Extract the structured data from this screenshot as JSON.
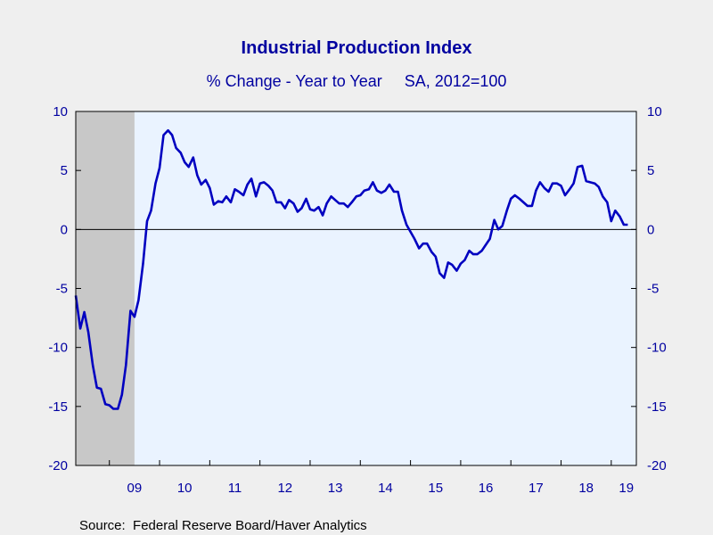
{
  "chart_data": {
    "type": "line",
    "title": "Industrial Production Index",
    "subtitle": "% Change - Year to Year     SA, 2012=100",
    "source": "Source:  Federal Reserve Board/Haver Analytics",
    "ylim": [
      -20,
      10
    ],
    "yticks": [
      10,
      5,
      0,
      -5,
      -10,
      -15,
      -20
    ],
    "xlim": [
      2008.33,
      2019.5
    ],
    "x_tick_labels": [
      "09",
      "10",
      "11",
      "12",
      "13",
      "14",
      "15",
      "16",
      "17",
      "18",
      "19"
    ],
    "zero_line": true,
    "recession_shading": {
      "start": 2008.33,
      "end": 2009.5
    },
    "colors": {
      "line": "#0000c0",
      "text": "#0000a0",
      "plot_background": "#eaf3ff",
      "recession": "#c8c8c8",
      "page_background": "#efefef"
    },
    "series": [
      {
        "color": "#0000c0",
        "points": [
          [
            2008.33,
            -5.6
          ],
          [
            2008.42,
            -8.4
          ],
          [
            2008.5,
            -7.0
          ],
          [
            2008.58,
            -8.7
          ],
          [
            2008.67,
            -11.5
          ],
          [
            2008.75,
            -13.4
          ],
          [
            2008.83,
            -13.5
          ],
          [
            2008.92,
            -14.8
          ],
          [
            2009.0,
            -14.9
          ],
          [
            2009.08,
            -15.2
          ],
          [
            2009.17,
            -15.2
          ],
          [
            2009.25,
            -14.0
          ],
          [
            2009.33,
            -11.5
          ],
          [
            2009.42,
            -6.9
          ],
          [
            2009.5,
            -7.4
          ],
          [
            2009.58,
            -6.0
          ],
          [
            2009.67,
            -2.9
          ],
          [
            2009.75,
            0.7
          ],
          [
            2009.83,
            1.6
          ],
          [
            2009.92,
            3.9
          ],
          [
            2010.0,
            5.2
          ],
          [
            2010.08,
            8.0
          ],
          [
            2010.17,
            8.4
          ],
          [
            2010.25,
            8.0
          ],
          [
            2010.33,
            6.9
          ],
          [
            2010.42,
            6.5
          ],
          [
            2010.5,
            5.7
          ],
          [
            2010.58,
            5.3
          ],
          [
            2010.67,
            6.1
          ],
          [
            2010.75,
            4.6
          ],
          [
            2010.83,
            3.8
          ],
          [
            2010.92,
            4.2
          ],
          [
            2011.0,
            3.5
          ],
          [
            2011.08,
            2.1
          ],
          [
            2011.17,
            2.4
          ],
          [
            2011.25,
            2.3
          ],
          [
            2011.33,
            2.8
          ],
          [
            2011.42,
            2.3
          ],
          [
            2011.5,
            3.4
          ],
          [
            2011.58,
            3.2
          ],
          [
            2011.67,
            2.9
          ],
          [
            2011.75,
            3.8
          ],
          [
            2011.83,
            4.3
          ],
          [
            2011.92,
            2.8
          ],
          [
            2012.0,
            3.9
          ],
          [
            2012.08,
            4.0
          ],
          [
            2012.17,
            3.7
          ],
          [
            2012.25,
            3.3
          ],
          [
            2012.33,
            2.3
          ],
          [
            2012.42,
            2.3
          ],
          [
            2012.5,
            1.8
          ],
          [
            2012.58,
            2.5
          ],
          [
            2012.67,
            2.2
          ],
          [
            2012.75,
            1.5
          ],
          [
            2012.83,
            1.8
          ],
          [
            2012.92,
            2.6
          ],
          [
            2013.0,
            1.7
          ],
          [
            2013.08,
            1.6
          ],
          [
            2013.17,
            1.9
          ],
          [
            2013.25,
            1.2
          ],
          [
            2013.33,
            2.2
          ],
          [
            2013.42,
            2.8
          ],
          [
            2013.5,
            2.5
          ],
          [
            2013.58,
            2.2
          ],
          [
            2013.67,
            2.2
          ],
          [
            2013.75,
            1.9
          ],
          [
            2013.83,
            2.3
          ],
          [
            2013.92,
            2.8
          ],
          [
            2014.0,
            2.9
          ],
          [
            2014.08,
            3.3
          ],
          [
            2014.17,
            3.4
          ],
          [
            2014.25,
            4.0
          ],
          [
            2014.33,
            3.3
          ],
          [
            2014.42,
            3.1
          ],
          [
            2014.5,
            3.3
          ],
          [
            2014.58,
            3.8
          ],
          [
            2014.67,
            3.2
          ],
          [
            2014.75,
            3.2
          ],
          [
            2014.83,
            1.6
          ],
          [
            2014.92,
            0.4
          ],
          [
            2015.0,
            -0.2
          ],
          [
            2015.08,
            -0.8
          ],
          [
            2015.17,
            -1.6
          ],
          [
            2015.25,
            -1.2
          ],
          [
            2015.33,
            -1.2
          ],
          [
            2015.42,
            -1.9
          ],
          [
            2015.5,
            -2.3
          ],
          [
            2015.58,
            -3.7
          ],
          [
            2015.67,
            -4.1
          ],
          [
            2015.75,
            -2.8
          ],
          [
            2015.83,
            -3.0
          ],
          [
            2015.92,
            -3.5
          ],
          [
            2016.0,
            -2.9
          ],
          [
            2016.08,
            -2.6
          ],
          [
            2016.17,
            -1.8
          ],
          [
            2016.25,
            -2.1
          ],
          [
            2016.33,
            -2.1
          ],
          [
            2016.42,
            -1.8
          ],
          [
            2016.5,
            -1.3
          ],
          [
            2016.58,
            -0.8
          ],
          [
            2016.67,
            0.8
          ],
          [
            2016.75,
            0.0
          ],
          [
            2016.83,
            0.3
          ],
          [
            2016.92,
            1.6
          ],
          [
            2017.0,
            2.6
          ],
          [
            2017.08,
            2.9
          ],
          [
            2017.17,
            2.6
          ],
          [
            2017.25,
            2.3
          ],
          [
            2017.33,
            2.0
          ],
          [
            2017.42,
            2.0
          ],
          [
            2017.5,
            3.3
          ],
          [
            2017.58,
            4.0
          ],
          [
            2017.67,
            3.5
          ],
          [
            2017.75,
            3.2
          ],
          [
            2017.83,
            3.9
          ],
          [
            2017.92,
            3.9
          ],
          [
            2018.0,
            3.7
          ],
          [
            2018.08,
            2.9
          ],
          [
            2018.17,
            3.4
          ],
          [
            2018.25,
            3.9
          ],
          [
            2018.33,
            5.3
          ],
          [
            2018.42,
            5.4
          ],
          [
            2018.5,
            4.1
          ],
          [
            2018.58,
            4.0
          ],
          [
            2018.67,
            3.9
          ],
          [
            2018.75,
            3.6
          ],
          [
            2018.83,
            2.8
          ],
          [
            2018.92,
            2.3
          ],
          [
            2019.0,
            0.7
          ],
          [
            2019.08,
            1.6
          ],
          [
            2019.17,
            1.1
          ],
          [
            2019.25,
            0.4
          ],
          [
            2019.33,
            0.4
          ]
        ]
      }
    ]
  }
}
